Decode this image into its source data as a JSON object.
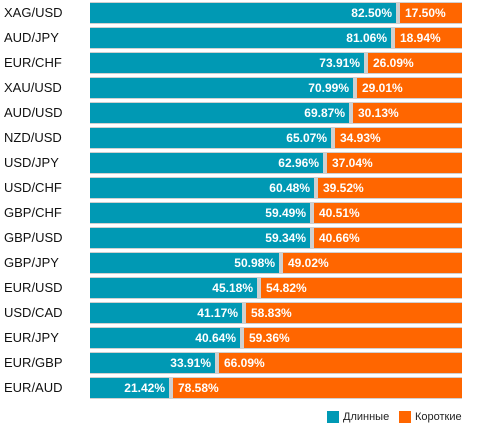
{
  "chart_data": {
    "type": "bar",
    "orientation": "horizontal",
    "stacked": true,
    "categories": [
      "XAG/USD",
      "AUD/JPY",
      "EUR/CHF",
      "XAU/USD",
      "AUD/USD",
      "NZD/USD",
      "USD/JPY",
      "USD/CHF",
      "GBP/CHF",
      "GBP/USD",
      "GBP/JPY",
      "EUR/USD",
      "USD/CAD",
      "EUR/JPY",
      "EUR/GBP",
      "EUR/AUD"
    ],
    "series": [
      {
        "name": "Длинные",
        "color": "#0099b4",
        "values": [
          82.5,
          81.06,
          73.91,
          70.99,
          69.87,
          65.07,
          62.96,
          60.48,
          59.49,
          59.34,
          50.98,
          45.18,
          41.17,
          40.64,
          33.91,
          21.42
        ],
        "labels": [
          "82.50%",
          "81.06%",
          "73.91%",
          "70.99%",
          "69.87%",
          "65.07%",
          "62.96%",
          "60.48%",
          "59.49%",
          "59.34%",
          "50.98%",
          "45.18%",
          "41.17%",
          "40.64%",
          "33.91%",
          "21.42%"
        ]
      },
      {
        "name": "Короткие",
        "color": "#ff6600",
        "values": [
          17.5,
          18.94,
          26.09,
          29.01,
          30.13,
          34.93,
          37.04,
          39.52,
          40.51,
          40.66,
          49.02,
          54.82,
          58.83,
          59.36,
          66.09,
          78.58
        ],
        "labels": [
          "17.50%",
          "18.94%",
          "26.09%",
          "29.01%",
          "30.13%",
          "34.93%",
          "37.04%",
          "39.52%",
          "40.51%",
          "40.66%",
          "49.02%",
          "54.82%",
          "58.83%",
          "59.36%",
          "66.09%",
          "78.58%"
        ]
      }
    ],
    "xlim": [
      0,
      100
    ],
    "legend": "bottom-right",
    "grid": false
  }
}
